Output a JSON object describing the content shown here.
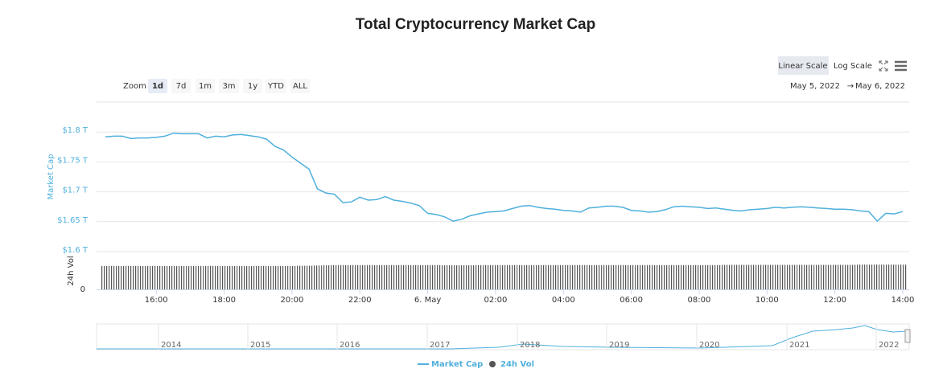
{
  "chart_data": {
    "type": "line",
    "title": "Total Cryptocurrency Market Cap",
    "ylabel": "Market Cap",
    "y2label": "24h Vol",
    "x": [
      14.5,
      14.75,
      15,
      15.25,
      15.5,
      15.75,
      16,
      16.25,
      16.5,
      16.75,
      17,
      17.25,
      17.5,
      17.75,
      18,
      18.25,
      18.5,
      18.75,
      19,
      19.25,
      19.5,
      19.75,
      20,
      20.25,
      20.5,
      20.75,
      21,
      21.25,
      21.5,
      21.75,
      22,
      22.25,
      22.5,
      22.75,
      23,
      23.25,
      23.5,
      23.75,
      24,
      24.25,
      24.5,
      24.75,
      25,
      25.25,
      25.5,
      25.75,
      26,
      26.25,
      26.5,
      26.75,
      27,
      27.25,
      27.5,
      27.75,
      28,
      28.25,
      28.5,
      28.75,
      29,
      29.25,
      29.5,
      29.75,
      30,
      30.25,
      30.5,
      30.75,
      31,
      31.25,
      31.5,
      31.75,
      32,
      32.25,
      32.5,
      32.75,
      33,
      33.25,
      33.5,
      33.75,
      34,
      34.25,
      34.5,
      34.75,
      35,
      35.25,
      35.5,
      35.75,
      36,
      36.25,
      36.5,
      36.75,
      37,
      37.25,
      37.5,
      37.75,
      38
    ],
    "xlim": [
      14.24,
      38.19
    ],
    "xticks": [
      {
        "value": 16,
        "label": "16:00"
      },
      {
        "value": 18,
        "label": "18:00"
      },
      {
        "value": 20,
        "label": "20:00"
      },
      {
        "value": 22,
        "label": "22:00"
      },
      {
        "value": 24,
        "label": "6. May"
      },
      {
        "value": 26,
        "label": "02:00"
      },
      {
        "value": 28,
        "label": "04:00"
      },
      {
        "value": 30,
        "label": "06:00"
      },
      {
        "value": 32,
        "label": "08:00"
      },
      {
        "value": 34,
        "label": "10:00"
      },
      {
        "value": 36,
        "label": "12:00"
      },
      {
        "value": 38,
        "label": "14:00"
      }
    ],
    "ylim": [
      1.6,
      1.85
    ],
    "yticks": [
      {
        "value": 1.6,
        "label": "$1.6 T"
      },
      {
        "value": 1.65,
        "label": "$1.65 T"
      },
      {
        "value": 1.7,
        "label": "$1.7 T"
      },
      {
        "value": 1.75,
        "label": "$1.75 T"
      },
      {
        "value": 1.8,
        "label": "$1.8 T"
      }
    ],
    "y2lim": [
      0,
      150
    ],
    "y2ticks": [
      0
    ],
    "grid": true,
    "series": [
      {
        "name": "Market Cap",
        "color": "#4fb0dc",
        "values": [
          1.792,
          1.793,
          1.793,
          1.789,
          1.79,
          1.79,
          1.791,
          1.793,
          1.798,
          1.797,
          1.797,
          1.797,
          1.79,
          1.793,
          1.792,
          1.795,
          1.796,
          1.794,
          1.792,
          1.788,
          1.776,
          1.77,
          1.758,
          1.748,
          1.738,
          1.705,
          1.698,
          1.696,
          1.682,
          1.683,
          1.691,
          1.686,
          1.687,
          1.692,
          1.686,
          1.684,
          1.681,
          1.677,
          1.664,
          1.662,
          1.658,
          1.651,
          1.654,
          1.66,
          1.663,
          1.666,
          1.667,
          1.668,
          1.672,
          1.676,
          1.677,
          1.674,
          1.672,
          1.671,
          1.669,
          1.668,
          1.666,
          1.673,
          1.674,
          1.676,
          1.676,
          1.674,
          1.669,
          1.668,
          1.666,
          1.667,
          1.67,
          1.675,
          1.676,
          1.675,
          1.674,
          1.672,
          1.673,
          1.671,
          1.669,
          1.668,
          1.67,
          1.671,
          1.672,
          1.674,
          1.673,
          1.674,
          1.675,
          1.674,
          1.673,
          1.672,
          1.671,
          1.671,
          1.67,
          1.668,
          1.667,
          1.651,
          1.664,
          1.663,
          1.667
        ]
      },
      {
        "name": "24h Vol",
        "type": "bar",
        "axis": "y2",
        "color": "#555555",
        "values": [
          104,
          104,
          104,
          104,
          104,
          104,
          104,
          104,
          104,
          104,
          104,
          104,
          104,
          104,
          104,
          104,
          104,
          104,
          104,
          104,
          104,
          104,
          104,
          105,
          105,
          106,
          107,
          108,
          108,
          108,
          108,
          108,
          108,
          108,
          108,
          108,
          108,
          108,
          108,
          108,
          107,
          107,
          107,
          107,
          108,
          108,
          108,
          108,
          108,
          108,
          108,
          108,
          108,
          108,
          108,
          108,
          108,
          108,
          108,
          108,
          108,
          108,
          108,
          108,
          108,
          108,
          108,
          108,
          108,
          108,
          108,
          108,
          108,
          109,
          109,
          109,
          109,
          109,
          109,
          109,
          109,
          109,
          109,
          109,
          109,
          109,
          109,
          109,
          109,
          110,
          110,
          110,
          110,
          110,
          110
        ]
      }
    ]
  },
  "controls": {
    "zoom_label": "Zoom",
    "zoom_buttons": [
      "1d",
      "7d",
      "1m",
      "3m",
      "1y",
      "YTD",
      "ALL"
    ],
    "scale_buttons": [
      "Linear Scale",
      "Log Scale"
    ],
    "date_from": "May 5, 2022",
    "date_sep": "→",
    "date_to": "May 6, 2022"
  },
  "navigator": {
    "labels": [
      "2014",
      "2015",
      "2016",
      "2017",
      "2018",
      "2019",
      "2020",
      "2021",
      "2022"
    ]
  }
}
